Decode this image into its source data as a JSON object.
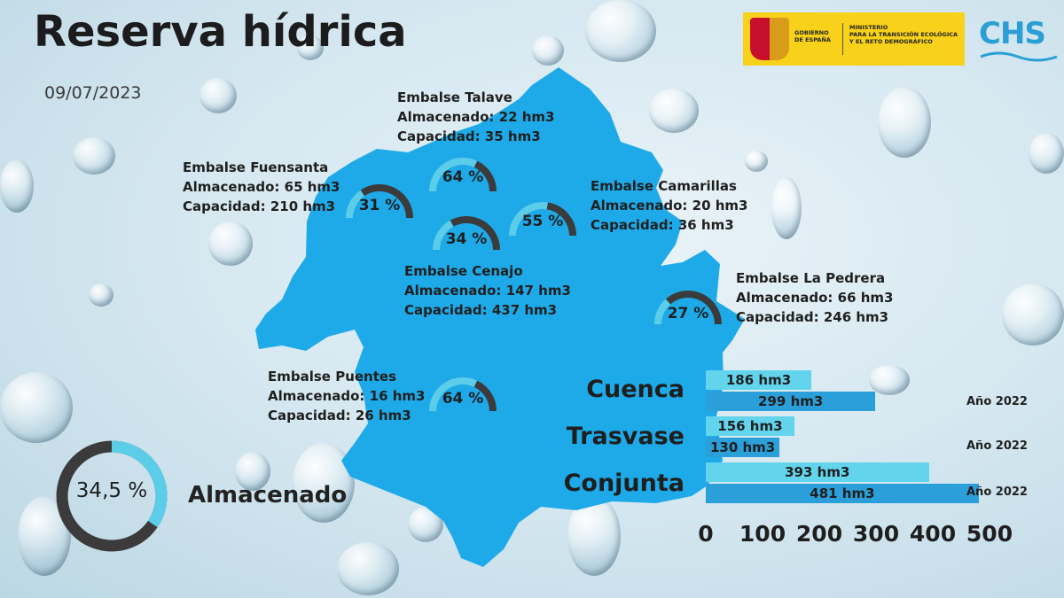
{
  "title": "Reserva hídrica",
  "date": "09/07/2023",
  "logos": {
    "gobierno": "GOBIERNO DE ESPAÑA",
    "ministerio_l1": "MINISTERIO",
    "ministerio_l2": "PARA LA TRANSICIÓN ECOLÓGICA",
    "ministerio_l3": "Y EL RETO DEMOGRÁFICO",
    "chs": "CHS"
  },
  "colors": {
    "map": "#1eaae8",
    "gauge_light": "#5ccde9",
    "gauge_dark": "#3b3b3b",
    "bar_2023": "#62d4ec",
    "bar_2022": "#2b9fd9",
    "logo_yellow": "#f7d11a"
  },
  "reservoirs": [
    {
      "id": "talave",
      "name": "Embalse Talave",
      "almacenado": "Almacenado: 22 hm3",
      "capacidad": "Capacidad: 35 hm3",
      "pct_label": "64 %",
      "pct": 64
    },
    {
      "id": "fuensanta",
      "name": "Embalse Fuensanta",
      "almacenado": "Almacenado: 65 hm3",
      "capacidad": "Capacidad: 210 hm3",
      "pct_label": "31 %",
      "pct": 31
    },
    {
      "id": "camarillas",
      "name": "Embalse Camarillas",
      "almacenado": "Almacenado: 20 hm3",
      "capacidad": "Capacidad: 36 hm3",
      "pct_label": "55 %",
      "pct": 55
    },
    {
      "id": "cenajo",
      "name": "Embalse Cenajo",
      "almacenado": "Almacenado: 147 hm3",
      "capacidad": "Capacidad: 437 hm3",
      "pct_label": "34 %",
      "pct": 34
    },
    {
      "id": "pedrera",
      "name": "Embalse La Pedrera",
      "almacenado": "Almacenado: 66 hm3",
      "capacidad": "Capacidad: 246 hm3",
      "pct_label": "27 %",
      "pct": 27
    },
    {
      "id": "puentes",
      "name": "Embalse Puentes",
      "almacenado": "Almacenado: 16 hm3",
      "capacidad": "Capacidad: 26 hm3",
      "pct_label": "64 %",
      "pct": 64
    }
  ],
  "total": {
    "pct_label": "34,5 %",
    "pct": 34.5,
    "label": "Almacenado"
  },
  "chart_data": {
    "type": "bar",
    "orientation": "horizontal",
    "categories": [
      "Cuenca",
      "Trasvase",
      "Conjunta"
    ],
    "series": [
      {
        "values": [
          186,
          156,
          393
        ],
        "labels": [
          "186 hm3",
          "156 hm3",
          "393 hm3"
        ]
      },
      {
        "name": "Año 2022",
        "values": [
          299,
          130,
          481
        ],
        "labels": [
          "299 hm3",
          "130 hm3",
          "481 hm3"
        ]
      }
    ],
    "year_labels": [
      "Año 2022",
      "Año 2022",
      "Año 2022"
    ],
    "xlim": [
      0,
      500
    ],
    "ticks": [
      "0",
      "100",
      "200",
      "300",
      "400",
      "500"
    ]
  }
}
